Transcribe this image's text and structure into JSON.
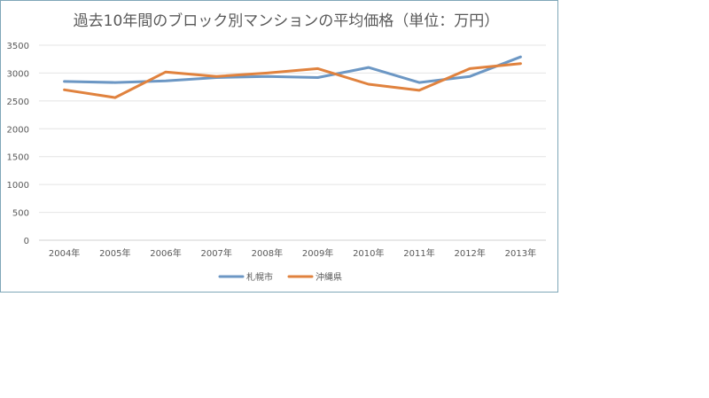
{
  "chart_data": {
    "type": "line",
    "title": "過去10年間のブロック別マンションの平均価格（単位：万円）",
    "categories": [
      "2004年",
      "2005年",
      "2006年",
      "2007年",
      "2008年",
      "2009年",
      "2010年",
      "2011年",
      "2012年",
      "2013年"
    ],
    "yticks": [
      "0",
      "500",
      "1000",
      "1500",
      "2000",
      "2500",
      "3000",
      "3500"
    ],
    "ylim": [
      0,
      3500
    ],
    "grid": true,
    "legend": "bottom",
    "series": [
      {
        "name": "札幌市",
        "color": "#6c97c4",
        "values": [
          2850,
          2830,
          2860,
          2920,
          2940,
          2920,
          3100,
          2830,
          2940,
          3290
        ]
      },
      {
        "name": "沖縄県",
        "color": "#e0823e",
        "values": [
          2700,
          2560,
          3020,
          2940,
          3000,
          3080,
          2800,
          2690,
          3080,
          3170
        ]
      }
    ]
  }
}
